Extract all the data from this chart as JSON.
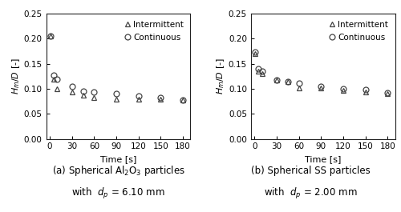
{
  "panel_a": {
    "intermittent_x": [
      1,
      5,
      10,
      30,
      45,
      60,
      90,
      120,
      150,
      180
    ],
    "intermittent_y": [
      0.205,
      0.12,
      0.1,
      0.093,
      0.088,
      0.082,
      0.08,
      0.08,
      0.079,
      0.077
    ],
    "continuous_x": [
      1,
      5,
      10,
      30,
      45,
      60,
      90,
      120,
      150,
      180
    ],
    "continuous_y": [
      0.205,
      0.127,
      0.12,
      0.105,
      0.095,
      0.093,
      0.09,
      0.085,
      0.082,
      0.077
    ],
    "xlabel": "Time [s]",
    "ylabel": "$H_m/D$ [-]",
    "xlim": [
      -5,
      190
    ],
    "ylim": [
      0.0,
      0.25
    ],
    "xticks": [
      0,
      30,
      60,
      90,
      120,
      150,
      180
    ],
    "yticks": [
      0.0,
      0.05,
      0.1,
      0.15,
      0.2,
      0.25
    ],
    "caption_line1": "(a) Spherical Al$_2$O$_3$ particles",
    "caption_line2": "with  $d_p$ = 6.10 mm"
  },
  "panel_b": {
    "intermittent_x": [
      1,
      5,
      10,
      30,
      45,
      60,
      90,
      120,
      150,
      180
    ],
    "intermittent_y": [
      0.17,
      0.135,
      0.13,
      0.118,
      0.115,
      0.102,
      0.102,
      0.097,
      0.093,
      0.091
    ],
    "continuous_x": [
      1,
      5,
      10,
      30,
      45,
      60,
      90,
      120,
      150,
      180
    ],
    "continuous_y": [
      0.173,
      0.14,
      0.135,
      0.118,
      0.115,
      0.112,
      0.105,
      0.1,
      0.099,
      0.092
    ],
    "xlabel": "Time [s]",
    "ylabel": "$H_m/D$ [-]",
    "xlim": [
      -5,
      190
    ],
    "ylim": [
      0.0,
      0.25
    ],
    "xticks": [
      0,
      30,
      60,
      90,
      120,
      150,
      180
    ],
    "yticks": [
      0.0,
      0.05,
      0.1,
      0.15,
      0.2,
      0.25
    ],
    "caption_line1": "(b) Spherical SS particles",
    "caption_line2": "with  $d_p$ = 2.00 mm"
  },
  "marker_size": 5,
  "marker_color": "#444444",
  "bg_color": "#ffffff",
  "caption_fontsize": 8.5,
  "label_fontsize": 8,
  "tick_fontsize": 7.5,
  "legend_fontsize": 7.5
}
